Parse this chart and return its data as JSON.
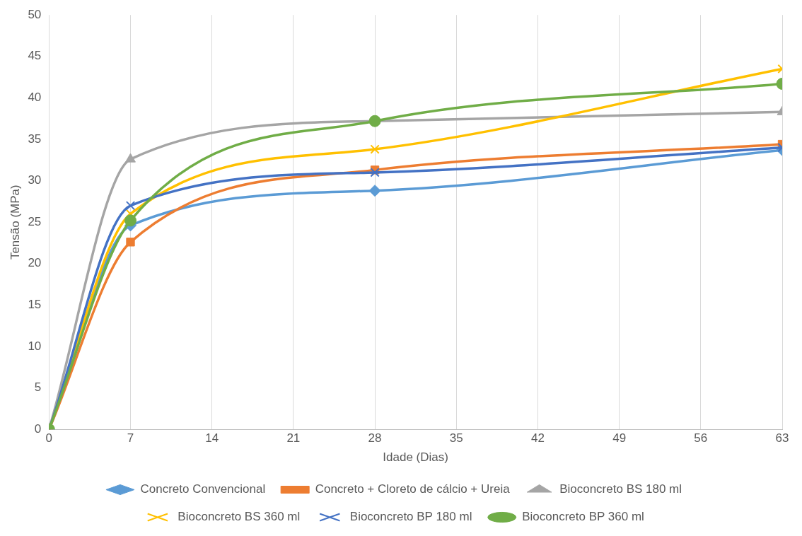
{
  "chart_data": {
    "type": "line",
    "xlabel": "Idade (Dias)",
    "ylabel": "Tensão (MPa)",
    "x": [
      0,
      7,
      28,
      63
    ],
    "xlim": [
      0,
      63
    ],
    "xticks": [
      0,
      7,
      14,
      21,
      28,
      35,
      42,
      49,
      56,
      63
    ],
    "ylim": [
      0,
      50
    ],
    "yticks": [
      0,
      5,
      10,
      15,
      20,
      25,
      30,
      35,
      40,
      45,
      50
    ],
    "grid": "x",
    "legend": "bottom",
    "series": [
      {
        "name": "Concreto Convencional",
        "color": "#5b9bd5",
        "marker": "diamond",
        "values": [
          0,
          24.6,
          28.8,
          33.7
        ]
      },
      {
        "name": "Concreto + Cloreto de cálcio + Ureia",
        "color": "#ed7d31",
        "marker": "square",
        "values": [
          0,
          22.6,
          31.3,
          34.4
        ]
      },
      {
        "name": "Bioconcreto BS 180 ml",
        "color": "#a5a5a5",
        "marker": "triangle",
        "values": [
          0,
          32.6,
          37.2,
          38.3
        ]
      },
      {
        "name": "Bioconcreto BS 360 ml",
        "color": "#ffc000",
        "marker": "cross",
        "values": [
          0,
          26,
          33.8,
          43.5
        ]
      },
      {
        "name": "Bioconcreto BP 180 ml",
        "color": "#4472c4",
        "marker": "cross",
        "values": [
          0,
          27,
          31,
          34
        ]
      },
      {
        "name": "Bioconcreto BP 360 ml",
        "color": "#70ad47",
        "marker": "circle",
        "values": [
          0,
          25.2,
          37.2,
          41.7
        ]
      }
    ]
  }
}
